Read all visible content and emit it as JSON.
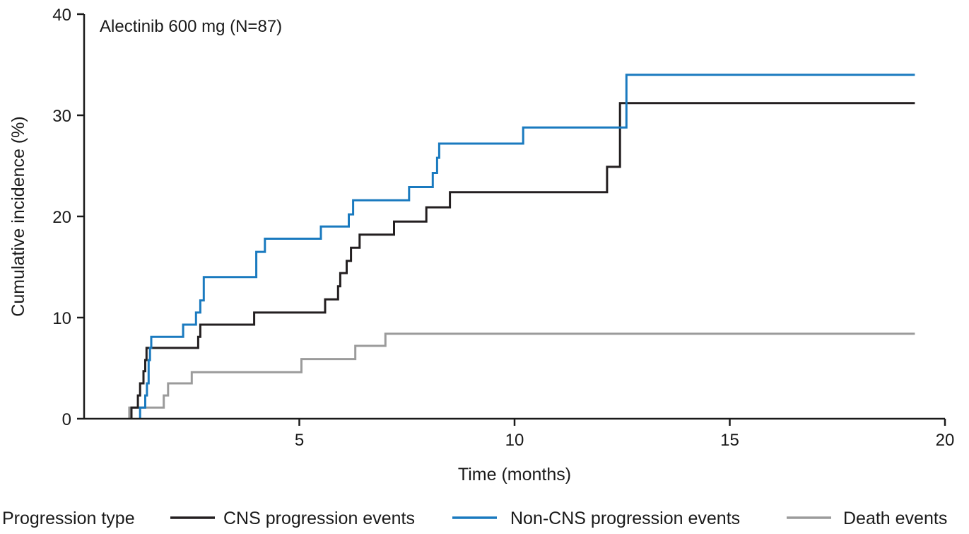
{
  "chart_data": {
    "type": "line",
    "step": true,
    "annotation": "Alectinib 600 mg (N=87)",
    "xlabel": "Time (months)",
    "ylabel": "Cumulative incidence (%)",
    "xlim": [
      0,
      20
    ],
    "ylim": [
      0,
      40
    ],
    "xticks": [
      5,
      10,
      15,
      20
    ],
    "yticks": [
      0,
      10,
      20,
      30,
      40
    ],
    "grid": false,
    "legend": {
      "position": "bottom",
      "title": "Progression type"
    },
    "series": [
      {
        "name": "CNS progression events",
        "color": "#231f20",
        "points": [
          [
            1.1,
            0
          ],
          [
            1.1,
            1.1
          ],
          [
            1.25,
            1.1
          ],
          [
            1.25,
            2.3
          ],
          [
            1.3,
            2.3
          ],
          [
            1.3,
            3.5
          ],
          [
            1.38,
            3.5
          ],
          [
            1.38,
            4.7
          ],
          [
            1.42,
            4.7
          ],
          [
            1.42,
            5.8
          ],
          [
            1.45,
            5.8
          ],
          [
            1.45,
            7.0
          ],
          [
            2.65,
            7.0
          ],
          [
            2.65,
            8.1
          ],
          [
            2.7,
            8.1
          ],
          [
            2.7,
            9.3
          ],
          [
            3.95,
            9.3
          ],
          [
            3.95,
            10.5
          ],
          [
            5.6,
            10.5
          ],
          [
            5.6,
            11.8
          ],
          [
            5.9,
            11.8
          ],
          [
            5.9,
            13.1
          ],
          [
            5.95,
            13.1
          ],
          [
            5.95,
            14.4
          ],
          [
            6.1,
            14.4
          ],
          [
            6.1,
            15.6
          ],
          [
            6.2,
            15.6
          ],
          [
            6.2,
            16.9
          ],
          [
            6.4,
            16.9
          ],
          [
            6.4,
            18.2
          ],
          [
            7.2,
            18.2
          ],
          [
            7.2,
            19.5
          ],
          [
            7.95,
            19.5
          ],
          [
            7.95,
            20.9
          ],
          [
            8.5,
            20.9
          ],
          [
            8.5,
            22.4
          ],
          [
            12.15,
            22.4
          ],
          [
            12.15,
            24.9
          ],
          [
            12.45,
            24.9
          ],
          [
            12.45,
            31.2
          ],
          [
            19.3,
            31.2
          ]
        ]
      },
      {
        "name": "Non-CNS progression events",
        "color": "#1a7abf",
        "points": [
          [
            1.3,
            0
          ],
          [
            1.3,
            1.1
          ],
          [
            1.42,
            1.1
          ],
          [
            1.42,
            2.3
          ],
          [
            1.46,
            2.3
          ],
          [
            1.46,
            3.5
          ],
          [
            1.5,
            3.5
          ],
          [
            1.5,
            5.8
          ],
          [
            1.53,
            5.8
          ],
          [
            1.53,
            7.0
          ],
          [
            1.56,
            7.0
          ],
          [
            1.56,
            8.1
          ],
          [
            2.3,
            8.1
          ],
          [
            2.3,
            9.3
          ],
          [
            2.6,
            9.3
          ],
          [
            2.6,
            10.5
          ],
          [
            2.7,
            10.5
          ],
          [
            2.7,
            11.7
          ],
          [
            2.78,
            11.7
          ],
          [
            2.78,
            14.0
          ],
          [
            4.0,
            14.0
          ],
          [
            4.0,
            16.5
          ],
          [
            4.2,
            16.5
          ],
          [
            4.2,
            17.8
          ],
          [
            5.5,
            17.8
          ],
          [
            5.5,
            19.0
          ],
          [
            6.15,
            19.0
          ],
          [
            6.15,
            20.2
          ],
          [
            6.25,
            20.2
          ],
          [
            6.25,
            21.6
          ],
          [
            7.55,
            21.6
          ],
          [
            7.55,
            22.9
          ],
          [
            8.1,
            22.9
          ],
          [
            8.1,
            24.3
          ],
          [
            8.2,
            24.3
          ],
          [
            8.2,
            25.8
          ],
          [
            8.25,
            25.8
          ],
          [
            8.25,
            27.2
          ],
          [
            10.2,
            27.2
          ],
          [
            10.2,
            28.8
          ],
          [
            12.6,
            28.8
          ],
          [
            12.6,
            34.0
          ],
          [
            19.3,
            34.0
          ]
        ]
      },
      {
        "name": "Death events",
        "color": "#9b9b9b",
        "points": [
          [
            1.05,
            0
          ],
          [
            1.05,
            1.1
          ],
          [
            1.85,
            1.1
          ],
          [
            1.85,
            2.3
          ],
          [
            1.95,
            2.3
          ],
          [
            1.95,
            3.5
          ],
          [
            2.5,
            3.5
          ],
          [
            2.5,
            4.6
          ],
          [
            5.05,
            4.6
          ],
          [
            5.05,
            5.9
          ],
          [
            6.3,
            5.9
          ],
          [
            6.3,
            7.2
          ],
          [
            7.0,
            7.2
          ],
          [
            7.0,
            8.4
          ],
          [
            19.3,
            8.4
          ]
        ]
      }
    ]
  }
}
